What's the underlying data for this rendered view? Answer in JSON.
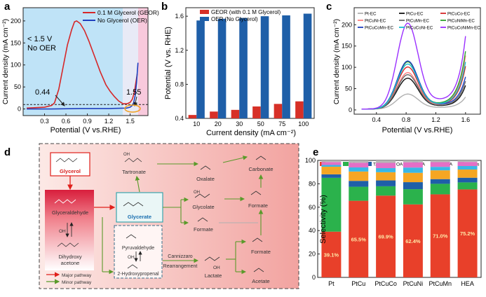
{
  "figure": {
    "panels": {
      "a": {
        "label": "a"
      },
      "b": {
        "label": "b"
      },
      "c": {
        "label": "c"
      },
      "d": {
        "label": "d"
      },
      "e": {
        "label": "e"
      }
    }
  },
  "chart_data": [
    {
      "panel": "a",
      "type": "line",
      "xlabel": "Potential (V vs.RHE)",
      "ylabel": "Current density (mA cm⁻²)",
      "xlim": [
        0.0,
        1.75
      ],
      "ylim": [
        -15,
        230
      ],
      "xticks": [
        "0.3",
        "0.6",
        "0.9",
        "1.2",
        "1.5"
      ],
      "yticks": [
        "0",
        "50",
        "100",
        "150",
        "200"
      ],
      "series": [
        {
          "name": "0.1 M Glycerol (GEOR)",
          "color": "#d62728",
          "x": [
            0.05,
            0.3,
            0.4,
            0.44,
            0.5,
            0.56,
            0.62,
            0.68,
            0.72,
            0.75,
            0.8,
            0.86,
            0.92,
            1.0,
            1.08,
            1.16,
            1.22,
            1.28,
            1.34,
            1.4,
            1.46,
            1.5,
            1.53,
            1.56,
            1.58,
            1.6
          ],
          "y": [
            2,
            4,
            8,
            14,
            45,
            95,
            145,
            180,
            198,
            200,
            194,
            178,
            155,
            120,
            85,
            55,
            40,
            28,
            18,
            12,
            12,
            15,
            22,
            38,
            60,
            80
          ]
        },
        {
          "name": "No Glycerol (OER)",
          "color": "#1f3fbf",
          "x": [
            0.05,
            0.4,
            0.8,
            1.2,
            1.45,
            1.5,
            1.53,
            1.55,
            1.57,
            1.59,
            1.61
          ],
          "y": [
            0,
            0,
            1,
            1,
            2,
            4,
            8,
            14,
            30,
            60,
            105
          ]
        }
      ],
      "annotations": {
        "oer_note_line1": "< 1.5 V",
        "oer_note_line2": "No OER",
        "onset_geor": "0.44",
        "onset_oer": "1.55"
      },
      "dashed_line_y": 10
    },
    {
      "panel": "b",
      "type": "bar",
      "xlabel": "Current density (mA cm⁻²)",
      "ylabel": "Potential (V vs. RHE)",
      "categories": [
        "10",
        "20",
        "30",
        "50",
        "75",
        "100"
      ],
      "ylim": [
        0.4,
        1.7
      ],
      "yticks": [
        "0.4",
        "0.8",
        "1.2",
        "1.6"
      ],
      "series": [
        {
          "name": "GEOR (with 0.1 M Glycerol)",
          "color": "#d73027",
          "values": [
            0.44,
            0.48,
            0.5,
            0.54,
            0.57,
            0.6
          ]
        },
        {
          "name": "OER (No Glycerol)",
          "color": "#1f5fa8",
          "values": [
            1.55,
            1.57,
            1.58,
            1.6,
            1.61,
            1.63
          ]
        }
      ]
    },
    {
      "panel": "c",
      "type": "line",
      "xlabel": "Potential (V vs.RHE)",
      "ylabel": "Current density (mA cm⁻²)",
      "xlim": [
        0.1,
        1.8
      ],
      "ylim": [
        -10,
        240
      ],
      "xticks": [
        "0.4",
        "0.8",
        "1.2",
        "1.6"
      ],
      "yticks": [
        "0",
        "50",
        "100",
        "150",
        "200"
      ],
      "series": [
        {
          "name": "Pt-EC",
          "color": "#b0b0b0",
          "peak": 35,
          "tail": 28
        },
        {
          "name": "PtCu-EC",
          "color": "#111111",
          "peak": 72,
          "tail": 55
        },
        {
          "name": "PtCuCo-EC",
          "color": "#d62728",
          "peak": 98,
          "tail": 100
        },
        {
          "name": "PtCuNi-EC",
          "color": "#ff7f7f",
          "peak": 85,
          "tail": 125
        },
        {
          "name": "PtCuMn-EC",
          "color": "#6a6a6a",
          "peak": 80,
          "tail": 65
        },
        {
          "name": "PtCuNiMn-EC",
          "color": "#2ca02c",
          "peak": 110,
          "tail": 135
        },
        {
          "name": "PtCuCoMn-EC",
          "color": "#1f3fbf",
          "peak": 112,
          "tail": 75
        },
        {
          "name": "PtCuCoNi-EC",
          "color": "#17becf",
          "peak": 105,
          "tail": 110
        },
        {
          "name": "PtCuCoNiMn-EC",
          "color": "#9b30ff",
          "peak": 200,
          "tail": 170
        }
      ]
    },
    {
      "panel": "e",
      "type": "bar",
      "stacked": true,
      "ylabel": "Selectivity (%)",
      "ylim": [
        0,
        100
      ],
      "yticks": [
        "0",
        "20",
        "40",
        "60",
        "80",
        "100"
      ],
      "categories": [
        "Pt",
        "PtCu",
        "PtCuCo",
        "PtCuNi",
        "PtCuMn",
        "HEA"
      ],
      "series": [
        {
          "name": "GLYA",
          "color": "#e8402a",
          "values": [
            39.1,
            65.5,
            69.9,
            62.4,
            71.0,
            75.2
          ]
        },
        {
          "name": "LA",
          "color": "#2bb24c",
          "values": [
            46.0,
            12.0,
            8.0,
            13.0,
            9.0,
            6.0
          ]
        },
        {
          "name": "TA",
          "color": "#1f5fa8",
          "values": [
            3.0,
            5.0,
            5.0,
            6.0,
            4.0,
            4.0
          ]
        },
        {
          "name": "OA",
          "color": "#f5a623",
          "values": [
            6.5,
            8.0,
            7.0,
            8.0,
            7.5,
            7.0
          ]
        },
        {
          "name": "FA",
          "color": "#39b7e6",
          "values": [
            1.5,
            3.5,
            3.5,
            4.5,
            3.0,
            3.0
          ]
        },
        {
          "name": "GCA",
          "color": "#e46fc6",
          "values": [
            2.5,
            4.0,
            4.5,
            4.5,
            4.0,
            3.5
          ]
        },
        {
          "name": "Others",
          "color": "#b5b5b5",
          "values": [
            1.4,
            2.0,
            2.1,
            1.6,
            1.5,
            1.3
          ]
        }
      ],
      "data_labels": [
        "39.1%",
        "65.5%",
        "69.9%",
        "62.4%",
        "71.0%",
        "75.2%"
      ]
    }
  ],
  "pathway": {
    "glycerol": "Glycerol",
    "glyceraldehyde": "Glyceraldehyde",
    "dihydroxy_line1": "Dihydroxy",
    "dihydroxy_line2": "acetone",
    "glycerate": "Glycerate",
    "tartronate": "Tartronate",
    "oxalate": "Oxalate",
    "glycolate": "Glycolate",
    "formate_a": "Formate",
    "formate_b": "Formate",
    "formate_c": "Formate",
    "carbonate": "Carbonate",
    "pyruvaldehyde": "Pyruvaldehyde",
    "hydroxypropenal": "2-Hydroxypropenal",
    "cannizzaro": "Cannizzaro",
    "rearrangement": "Rearrangement",
    "lactate": "Lactate",
    "acetate": "Acetate",
    "oh_1": "OH",
    "oh_2": "OH",
    "oh_3": "OH",
    "oh_4": "OH",
    "oh_5": "OH",
    "legend_major": "Major pathway",
    "legend_minor": "Minor pathway"
  }
}
